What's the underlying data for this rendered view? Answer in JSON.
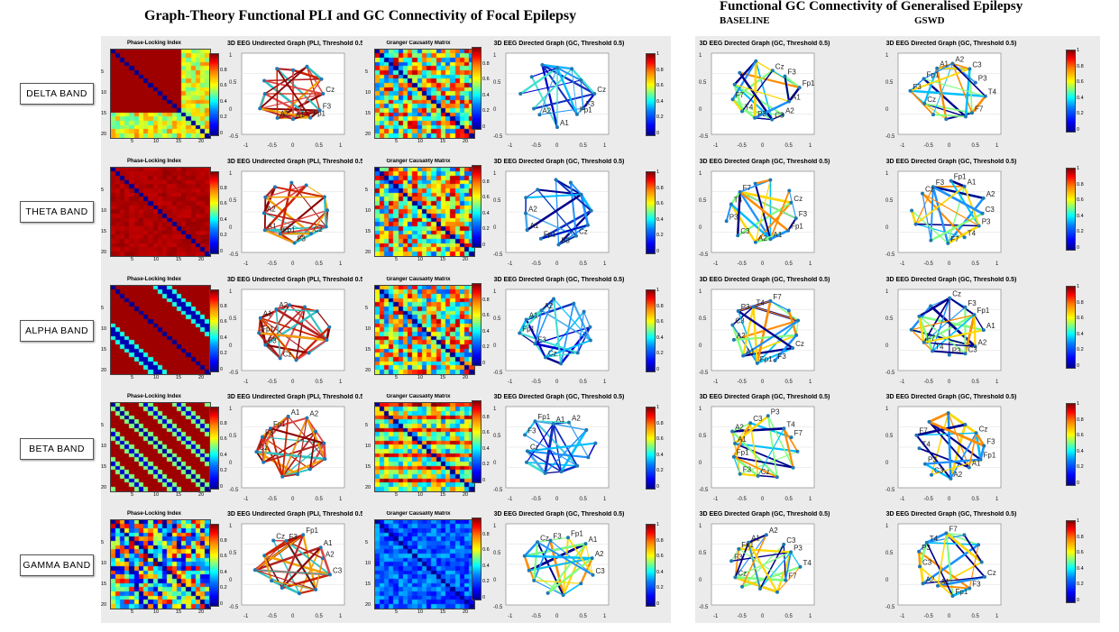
{
  "left_title": "Graph-Theory Functional PLI and GC Connectivity of Focal Epilepsy",
  "right_title": "Functional GC Connectivity of Generalised Epilepsy",
  "right_subtitles": {
    "baseline": "BASELINE",
    "gswd": "GSWD"
  },
  "bands": [
    "DELTA BAND",
    "THETA BAND",
    "ALPHA BAND",
    "BETA BAND",
    "GAMMA BAND"
  ],
  "matrix_titles": {
    "pli": "Phase-Locking Index",
    "gc": "Granger Causality Matrix"
  },
  "graph_titles": {
    "pli": "3D EEG Undirected Graph (PLI, Threshold 0.5)",
    "gc": "3D EEG Directed Graph (GC, Threshold 0.5)"
  },
  "matrix_axis_ticks": {
    "x": [
      "5",
      "10",
      "15",
      "20"
    ],
    "y": [
      "5",
      "10",
      "15",
      "20"
    ]
  },
  "colorbar_ticks_full": [
    "0",
    "0.2",
    "0.4",
    "0.6",
    "0.8",
    "1"
  ],
  "colorbar_ticks_short": [
    "0",
    "0.2",
    "0.4",
    "0.6",
    "0.8"
  ],
  "graph_y_ticks": [
    "1",
    "0.5",
    "0",
    "-0.5"
  ],
  "graph_x_ticks": [
    "-1",
    "-0.5",
    "0",
    "0.5",
    "1"
  ],
  "node_labels": [
    "Cz",
    "F3",
    "Fp1",
    "A1",
    "A2",
    "C3",
    "P3",
    "P4",
    "T4",
    "F7",
    "T5"
  ],
  "colors": {
    "panel_bg": "#ebebeb",
    "matrix_high": "#8b0000",
    "matrix_low": "#0a0a80"
  }
}
